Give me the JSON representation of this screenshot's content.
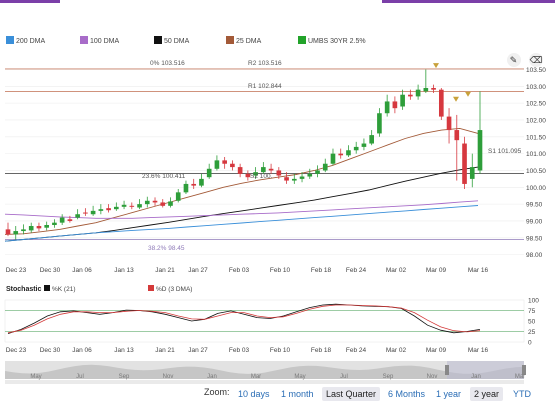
{
  "legend": [
    {
      "label": "200 DMA",
      "color": "#3a8fd9"
    },
    {
      "label": "100 DMA",
      "color": "#a86cc9"
    },
    {
      "label": "50 DMA",
      "color": "#111111"
    },
    {
      "label": "25 DMA",
      "color": "#a35a38"
    },
    {
      "label": "UMBS 30YR 2.5%",
      "color": "#22a32a"
    }
  ],
  "tools": {
    "pen_icon": "pencil-icon",
    "eraser_icon": "eraser-icon"
  },
  "annotations": {
    "fib0": "0% 103.516",
    "r2": "R2 103.516",
    "r1": "R1 102.844",
    "fib236": "23.6% 100.411",
    "s2": "S2 100.",
    "s1": "S1 101.095",
    "fib382": "38.2% 98.45"
  },
  "y_axis": [
    "103.50",
    "103.00",
    "102.50",
    "102.00",
    "101.50",
    "101.00",
    "100.50",
    "100.00",
    "99.50",
    "99.00",
    "98.50",
    "98.00"
  ],
  "x_axis": [
    "Dec 23",
    "Dec 30",
    "Jan 06",
    "Jan 13",
    "Jan 21",
    "Jan 27",
    "Feb 03",
    "Feb 10",
    "Feb 18",
    "Feb 24",
    "Mar 02",
    "Mar 09",
    "Mar 16"
  ],
  "stoch": {
    "title": "Stochastic",
    "k_label": "%K (21)",
    "d_label": "%D (3 DMA)",
    "y_axis": [
      "100",
      "75",
      "50",
      "25",
      "0"
    ]
  },
  "navigator": [
    "May",
    "Jul",
    "Sep",
    "Nov",
    "Jan",
    "Mar",
    "May",
    "Jul",
    "Sep",
    "Nov",
    "Jan",
    "Mar"
  ],
  "zoom": {
    "label": "Zoom:",
    "options": [
      "10 days",
      "1 month",
      "Last Quarter",
      "6 Months",
      "1 year",
      "2 year",
      "YTD"
    ],
    "selected": "Last Quarter"
  },
  "chart_data": {
    "type": "candlestick",
    "ylim": [
      97.9,
      103.9
    ],
    "x_labels": [
      "Dec 23",
      "Dec 30",
      "Jan 06",
      "Jan 13",
      "Jan 21",
      "Jan 27",
      "Feb 03",
      "Feb 10",
      "Feb 18",
      "Feb 24",
      "Mar 02",
      "Mar 09",
      "Mar 16"
    ],
    "levels": [
      {
        "label": "0% 103.516",
        "value": 103.516,
        "color": "#c9826a"
      },
      {
        "label": "R1 102.844",
        "value": 102.844,
        "color": "#c9826a"
      },
      {
        "label": "23.6% 100.411",
        "value": 100.411,
        "color": "#333333"
      },
      {
        "label": "38.2% 98.45",
        "value": 98.45,
        "color": "#8e7ab8"
      }
    ],
    "candles": [
      [
        98.75,
        98.6,
        98.95,
        98.55
      ],
      [
        98.6,
        98.7,
        98.85,
        98.45
      ],
      [
        98.7,
        98.75,
        98.9,
        98.6
      ],
      [
        98.72,
        98.85,
        98.95,
        98.65
      ],
      [
        98.85,
        98.78,
        98.95,
        98.7
      ],
      [
        98.8,
        98.88,
        98.98,
        98.72
      ],
      [
        98.88,
        98.95,
        99.05,
        98.8
      ],
      [
        98.95,
        99.1,
        99.2,
        98.88
      ],
      [
        99.05,
        99.0,
        99.15,
        98.95
      ],
      [
        99.1,
        99.2,
        99.35,
        99.05
      ],
      [
        99.25,
        99.22,
        99.38,
        99.15
      ],
      [
        99.2,
        99.3,
        99.45,
        99.15
      ],
      [
        99.3,
        99.35,
        99.5,
        99.2
      ],
      [
        99.38,
        99.32,
        99.5,
        99.25
      ],
      [
        99.35,
        99.42,
        99.55,
        99.3
      ],
      [
        99.42,
        99.48,
        99.6,
        99.35
      ],
      [
        99.45,
        99.42,
        99.55,
        99.35
      ],
      [
        99.4,
        99.5,
        99.65,
        99.35
      ],
      [
        99.5,
        99.6,
        99.72,
        99.4
      ],
      [
        99.6,
        99.55,
        99.7,
        99.45
      ],
      [
        99.55,
        99.45,
        99.65,
        99.4
      ],
      [
        99.45,
        99.58,
        99.7,
        99.4
      ],
      [
        99.6,
        99.85,
        99.95,
        99.55
      ],
      [
        99.85,
        100.1,
        100.2,
        99.8
      ],
      [
        100.1,
        100.05,
        100.25,
        99.95
      ],
      [
        100.05,
        100.25,
        100.4,
        100.0
      ],
      [
        100.3,
        100.55,
        100.7,
        100.25
      ],
      [
        100.55,
        100.8,
        100.95,
        100.5
      ],
      [
        100.8,
        100.7,
        100.9,
        100.55
      ],
      [
        100.7,
        100.6,
        100.8,
        100.5
      ],
      [
        100.6,
        100.4,
        100.7,
        100.3
      ],
      [
        100.4,
        100.3,
        100.5,
        100.2
      ],
      [
        100.35,
        100.45,
        100.6,
        100.25
      ],
      [
        100.45,
        100.6,
        100.75,
        100.4
      ],
      [
        100.55,
        100.5,
        100.7,
        100.4
      ],
      [
        100.5,
        100.35,
        100.6,
        100.25
      ],
      [
        100.3,
        100.2,
        100.45,
        100.1
      ],
      [
        100.2,
        100.25,
        100.4,
        100.1
      ],
      [
        100.25,
        100.32,
        100.45,
        100.15
      ],
      [
        100.32,
        100.4,
        100.55,
        100.25
      ],
      [
        100.4,
        100.5,
        100.65,
        100.3
      ],
      [
        100.5,
        100.7,
        100.85,
        100.45
      ],
      [
        100.7,
        101.0,
        101.15,
        100.65
      ],
      [
        101.0,
        100.95,
        101.15,
        100.85
      ],
      [
        100.95,
        101.1,
        101.25,
        100.9
      ],
      [
        101.1,
        101.2,
        101.35,
        101.0
      ],
      [
        101.2,
        101.3,
        101.45,
        101.1
      ],
      [
        101.3,
        101.55,
        101.7,
        101.25
      ],
      [
        101.6,
        102.2,
        102.35,
        101.5
      ],
      [
        102.2,
        102.55,
        102.75,
        102.1
      ],
      [
        102.55,
        102.35,
        102.7,
        102.2
      ],
      [
        102.4,
        102.75,
        102.9,
        102.3
      ],
      [
        102.75,
        102.7,
        102.9,
        102.6
      ],
      [
        102.7,
        102.9,
        103.05,
        102.6
      ],
      [
        102.85,
        102.95,
        103.5,
        102.8
      ],
      [
        102.95,
        102.9,
        103.05,
        102.8
      ],
      [
        102.9,
        102.1,
        102.95,
        102.0
      ],
      [
        102.1,
        101.7,
        102.35,
        101.3
      ],
      [
        101.7,
        101.4,
        102.15,
        100.2
      ],
      [
        101.3,
        100.1,
        101.5,
        99.95
      ],
      [
        100.25,
        100.6,
        101.0,
        100.0
      ],
      [
        100.5,
        101.7,
        102.85,
        100.4
      ]
    ],
    "series": [
      {
        "name": "25 DMA",
        "color": "#a35a38",
        "values": [
          98.6,
          98.62,
          98.68,
          98.75,
          98.85,
          98.95,
          99.1,
          99.25,
          99.4,
          99.55,
          99.7,
          99.85,
          100.0,
          100.12,
          100.22,
          100.3,
          100.38,
          100.5,
          100.65,
          100.85,
          101.05,
          101.25,
          101.45,
          101.6,
          101.7,
          101.75,
          101.6
        ]
      },
      {
        "name": "50 DMA",
        "color": "#111111",
        "values": [
          98.4,
          98.45,
          98.5,
          98.55,
          98.6,
          98.65,
          98.72,
          98.8,
          98.88,
          98.96,
          99.05,
          99.14,
          99.22,
          99.3,
          99.38,
          99.46,
          99.54,
          99.62,
          99.72,
          99.82,
          99.92,
          100.05,
          100.18,
          100.3,
          100.42,
          100.52,
          100.6
        ]
      },
      {
        "name": "100 DMA",
        "color": "#a86cc9",
        "values": [
          99.2,
          99.18,
          99.15,
          99.12,
          99.1,
          99.08,
          99.08,
          99.08,
          99.1,
          99.12,
          99.14,
          99.16,
          99.18,
          99.2,
          99.22,
          99.24,
          99.27,
          99.3,
          99.33,
          99.36,
          99.39,
          99.42,
          99.45,
          99.48,
          99.52,
          99.56,
          99.6
        ]
      },
      {
        "name": "200 DMA",
        "color": "#3a8fd9",
        "values": [
          98.4,
          98.45,
          98.5,
          98.55,
          98.6,
          98.65,
          98.68,
          98.72,
          98.75,
          98.78,
          98.82,
          98.86,
          98.9,
          98.94,
          98.98,
          99.02,
          99.06,
          99.1,
          99.14,
          99.18,
          99.22,
          99.26,
          99.3,
          99.34,
          99.38,
          99.42,
          99.46
        ]
      }
    ],
    "stochastic": {
      "ylim": [
        0,
        100
      ],
      "lines": [
        75,
        25
      ],
      "k": [
        20,
        30,
        45,
        62,
        72,
        74,
        70,
        66,
        70,
        76,
        75,
        72,
        66,
        58,
        50,
        54,
        68,
        74,
        66,
        58,
        56,
        62,
        72,
        82,
        88,
        90,
        88,
        86,
        85,
        84,
        80,
        62,
        40,
        28,
        22,
        25,
        30
      ],
      "d": [
        22,
        28,
        40,
        55,
        66,
        72,
        72,
        70,
        70,
        73,
        75,
        73,
        70,
        62,
        55,
        54,
        62,
        70,
        70,
        62,
        58,
        60,
        68,
        78,
        85,
        88,
        88,
        87,
        86,
        84,
        81,
        70,
        52,
        36,
        27,
        24,
        27
      ]
    }
  }
}
